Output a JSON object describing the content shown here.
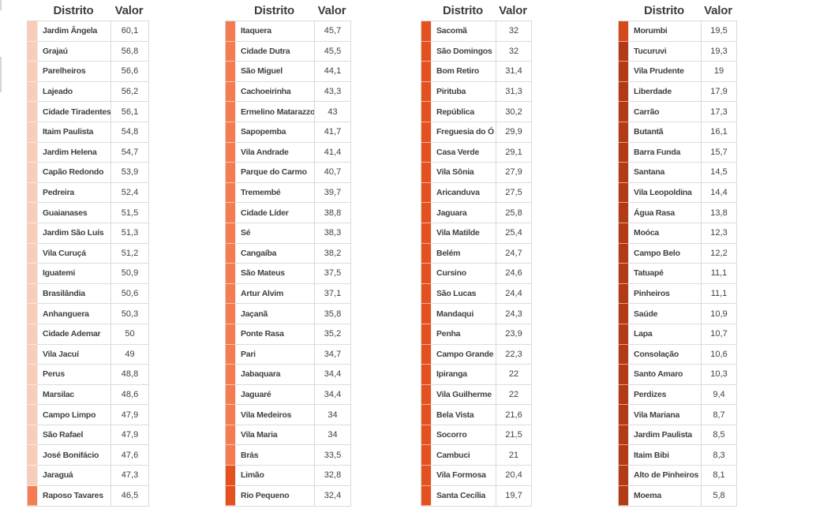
{
  "labels": {
    "district": "Distrito",
    "value": "Valor"
  },
  "colors": {
    "peach": "#FACDB9",
    "coral": "#F47C50",
    "orangeRed": "#E4511F",
    "brightBrick": "#D54A1B",
    "brick": "#B23A15",
    "grid_border": "#D9D9D9",
    "header_text": "#3D3D3D",
    "cell_text": "#404040"
  },
  "chart_data": {
    "type": "table",
    "columns": [
      "Distrito",
      "Valor"
    ],
    "tables": [
      {
        "marker": "peach",
        "rows": [
          {
            "d": "Jardim Ângela",
            "v": "60,1"
          },
          {
            "d": "Grajaú",
            "v": "56,8"
          },
          {
            "d": "Parelheiros",
            "v": "56,6"
          },
          {
            "d": "Lajeado",
            "v": "56,2"
          },
          {
            "d": "Cidade Tiradentes",
            "v": "56,1"
          },
          {
            "d": "Itaim Paulista",
            "v": "54,8"
          },
          {
            "d": "Jardim Helena",
            "v": "54,7"
          },
          {
            "d": "Capão Redondo",
            "v": "53,9"
          },
          {
            "d": "Pedreira",
            "v": "52,4"
          },
          {
            "d": "Guaianases",
            "v": "51,5"
          },
          {
            "d": "Jardim São Luís",
            "v": "51,3"
          },
          {
            "d": "Vila Curuçá",
            "v": "51,2"
          },
          {
            "d": "Iguatemi",
            "v": "50,9"
          },
          {
            "d": "Brasilândia",
            "v": "50,6"
          },
          {
            "d": "Anhanguera",
            "v": "50,3"
          },
          {
            "d": "Cidade Ademar",
            "v": "50"
          },
          {
            "d": "Vila Jacuí",
            "v": "49"
          },
          {
            "d": "Perus",
            "v": "48,8"
          },
          {
            "d": "Marsilac",
            "v": "48,6"
          },
          {
            "d": "Campo Limpo",
            "v": "47,9"
          },
          {
            "d": "São Rafael",
            "v": "47,9"
          },
          {
            "d": "José Bonifácio",
            "v": "47,6"
          },
          {
            "d": "Jaraguá",
            "v": "47,3"
          },
          {
            "d": "Raposo Tavares",
            "v": "46,5",
            "m": "coral"
          }
        ]
      },
      {
        "marker": "coral",
        "rows": [
          {
            "d": "Itaquera",
            "v": "45,7"
          },
          {
            "d": "Cidade Dutra",
            "v": "45,5"
          },
          {
            "d": "São Miguel",
            "v": "44,1"
          },
          {
            "d": "Cachoeirinha",
            "v": "43,3"
          },
          {
            "d": "Ermelino Matarazzo",
            "v": "43"
          },
          {
            "d": "Sapopemba",
            "v": "41,7"
          },
          {
            "d": "Vila Andrade",
            "v": "41,4"
          },
          {
            "d": "Parque do Carmo",
            "v": "40,7"
          },
          {
            "d": "Tremembé",
            "v": "39,7"
          },
          {
            "d": "Cidade Líder",
            "v": "38,8"
          },
          {
            "d": "Sé",
            "v": "38,3"
          },
          {
            "d": "Cangaíba",
            "v": "38,2"
          },
          {
            "d": "São Mateus",
            "v": "37,5"
          },
          {
            "d": "Artur Alvim",
            "v": "37,1"
          },
          {
            "d": "Jaçanã",
            "v": "35,8"
          },
          {
            "d": "Ponte Rasa",
            "v": "35,2"
          },
          {
            "d": "Pari",
            "v": "34,7"
          },
          {
            "d": "Jabaquara",
            "v": "34,4"
          },
          {
            "d": "Jaguaré",
            "v": "34,4"
          },
          {
            "d": "Vila Medeiros",
            "v": "34"
          },
          {
            "d": "Vila Maria",
            "v": "34"
          },
          {
            "d": "Brás",
            "v": "33,5"
          },
          {
            "d": "Limão",
            "v": "32,8",
            "m": "orangeRed"
          },
          {
            "d": "Rio Pequeno",
            "v": "32,4",
            "m": "orangeRed"
          }
        ]
      },
      {
        "marker": "orangeRed",
        "rows": [
          {
            "d": "Sacomã",
            "v": "32"
          },
          {
            "d": "São Domingos",
            "v": "32"
          },
          {
            "d": "Bom Retiro",
            "v": "31,4"
          },
          {
            "d": "Pirituba",
            "v": "31,3"
          },
          {
            "d": "República",
            "v": "30,2"
          },
          {
            "d": "Freguesia do Ó",
            "v": "29,9"
          },
          {
            "d": "Casa Verde",
            "v": "29,1"
          },
          {
            "d": "Vila Sônia",
            "v": "27,9"
          },
          {
            "d": "Aricanduva",
            "v": "27,5"
          },
          {
            "d": "Jaguara",
            "v": "25,8"
          },
          {
            "d": "Vila Matilde",
            "v": "25,4"
          },
          {
            "d": "Belém",
            "v": "24,7"
          },
          {
            "d": "Cursino",
            "v": "24,6"
          },
          {
            "d": "São Lucas",
            "v": "24,4"
          },
          {
            "d": "Mandaqui",
            "v": "24,3"
          },
          {
            "d": "Penha",
            "v": "23,9"
          },
          {
            "d": "Campo Grande",
            "v": "22,3"
          },
          {
            "d": "Ipiranga",
            "v": "22"
          },
          {
            "d": "Vila Guilherme",
            "v": "22"
          },
          {
            "d": "Bela Vista",
            "v": "21,6"
          },
          {
            "d": "Socorro",
            "v": "21,5"
          },
          {
            "d": "Cambuci",
            "v": "21"
          },
          {
            "d": "Vila Formosa",
            "v": "20,4"
          },
          {
            "d": "Santa Cecília",
            "v": "19,7"
          }
        ]
      },
      {
        "marker": "brick",
        "rows": [
          {
            "d": "Morumbi",
            "v": "19,5",
            "m": "brightBrick"
          },
          {
            "d": "Tucuruvi",
            "v": "19,3"
          },
          {
            "d": "Vila Prudente",
            "v": "19"
          },
          {
            "d": "Liberdade",
            "v": "17,9"
          },
          {
            "d": "Carrão",
            "v": "17,3"
          },
          {
            "d": "Butantã",
            "v": "16,1"
          },
          {
            "d": "Barra Funda",
            "v": "15,7"
          },
          {
            "d": "Santana",
            "v": "14,5"
          },
          {
            "d": "Vila Leopoldina",
            "v": "14,4"
          },
          {
            "d": "Água Rasa",
            "v": "13,8"
          },
          {
            "d": "Moóca",
            "v": "12,3"
          },
          {
            "d": "Campo Belo",
            "v": "12,2"
          },
          {
            "d": "Tatuapé",
            "v": "11,1"
          },
          {
            "d": "Pinheiros",
            "v": "11,1"
          },
          {
            "d": "Saúde",
            "v": "10,9"
          },
          {
            "d": "Lapa",
            "v": "10,7"
          },
          {
            "d": "Consolação",
            "v": "10,6"
          },
          {
            "d": "Santo Amaro",
            "v": "10,3"
          },
          {
            "d": "Perdizes",
            "v": "9,4"
          },
          {
            "d": "Vila Mariana",
            "v": "8,7"
          },
          {
            "d": "Jardim Paulista",
            "v": "8,5"
          },
          {
            "d": "Itaim Bibi",
            "v": "8,3"
          },
          {
            "d": "Alto de Pinheiros",
            "v": "8,1"
          },
          {
            "d": "Moema",
            "v": "5,8"
          }
        ]
      }
    ]
  }
}
